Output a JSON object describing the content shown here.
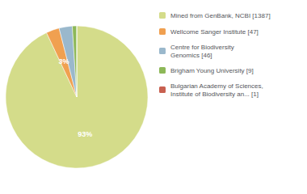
{
  "chart_data": {
    "type": "pie",
    "categories": [
      "Mined from GenBank, NCBI [1387]",
      "Wellcome Sanger Institute [47]",
      "Centre for Biodiversity\nGenomics [46]",
      "Brigham Young University [9]",
      "Bulgarian Academy of Sciences,\nInstitute of Biodiversity an... [1]"
    ],
    "values": [
      93,
      3,
      3,
      1,
      0
    ],
    "value_labels": [
      "93%",
      "3%",
      "3%",
      null,
      null
    ],
    "colors": [
      "#d4dc8a",
      "#f0a050",
      "#9ab8cc",
      "#8db858",
      "#c86050"
    ],
    "data_labels": true,
    "legend": "right"
  }
}
